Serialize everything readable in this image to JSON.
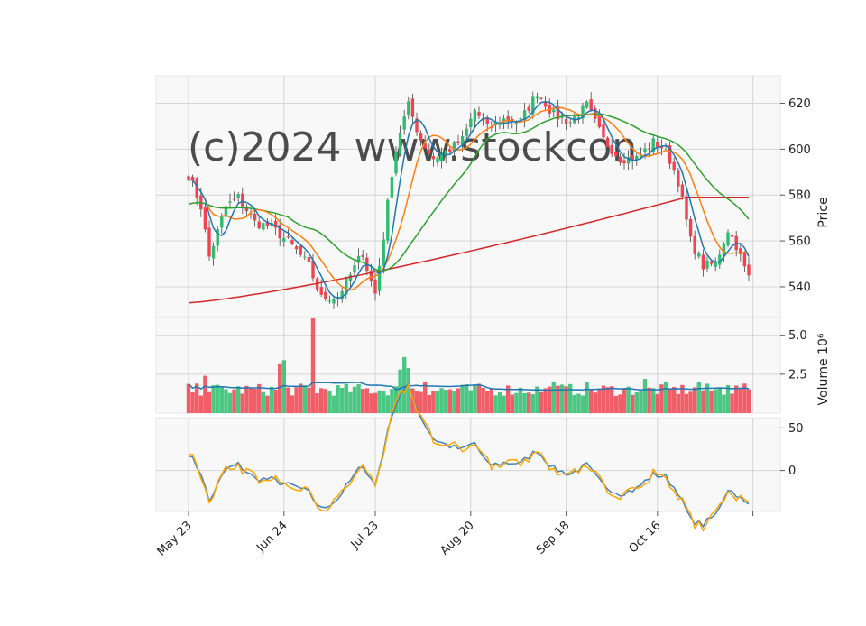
{
  "chart_data": {
    "type": "candlestick",
    "watermark": "(c)2024 www.stockcon",
    "x_tick_labels": [
      "May 23",
      "Jun 24",
      "Jul 23",
      "Aug 20",
      "Sep 18",
      "Oct 16"
    ],
    "x_tick_dates": [
      "2024-05-23",
      "2024-06-24",
      "2024-07-23",
      "2024-08-20",
      "2024-09-18",
      "2024-10-16"
    ],
    "x_range": [
      "2024-05-23",
      "2024-11-06"
    ],
    "grid": true,
    "colors": {
      "up": "#2ebd6f",
      "down": "#f0434f",
      "ma_short": "#1f77b4",
      "ma_mid": "#ff7f0e",
      "ma_long": "#2ca02c",
      "ma_longest": "#d62728",
      "osc_a": "#4682b4",
      "osc_b": "#ffa500"
    },
    "price_panel": {
      "ylabel": "Price",
      "ylim": [
        527,
        632
      ],
      "yticks": [
        540,
        560,
        580,
        600,
        620
      ],
      "anchors": [
        [
          0,
          589
        ],
        [
          3,
          575
        ],
        [
          5,
          553
        ],
        [
          9,
          575
        ],
        [
          12,
          579
        ],
        [
          16,
          568
        ],
        [
          20,
          566
        ],
        [
          25,
          558
        ],
        [
          29,
          549
        ],
        [
          32,
          535
        ],
        [
          36,
          536
        ],
        [
          39,
          545
        ],
        [
          42,
          555
        ],
        [
          43,
          548
        ],
        [
          45,
          537
        ],
        [
          47,
          562
        ],
        [
          49,
          590
        ],
        [
          51,
          608
        ],
        [
          53,
          619
        ],
        [
          56,
          604
        ],
        [
          59,
          596
        ],
        [
          63,
          600
        ],
        [
          66,
          604
        ],
        [
          69,
          617
        ],
        [
          72,
          609
        ],
        [
          76,
          613
        ],
        [
          80,
          612
        ],
        [
          84,
          625
        ],
        [
          88,
          615
        ],
        [
          92,
          612
        ],
        [
          96,
          619
        ],
        [
          100,
          604
        ],
        [
          104,
          596
        ],
        [
          108,
          596
        ],
        [
          112,
          603
        ],
        [
          115,
          600
        ],
        [
          118,
          586
        ],
        [
          121,
          560
        ],
        [
          124,
          549
        ],
        [
          127,
          550
        ],
        [
          130,
          565
        ],
        [
          132,
          558
        ],
        [
          134,
          548
        ],
        [
          135,
          544
        ]
      ]
    },
    "volume_panel": {
      "ylabel": "Volume  10^6",
      "ylim": [
        0,
        6.2
      ],
      "yticks": [
        2.5,
        5.0
      ],
      "ytick_labels": [
        "2.5",
        "5.0"
      ],
      "spikes": [
        [
          4,
          2.4
        ],
        [
          22,
          3.2
        ],
        [
          23,
          3.4
        ],
        [
          30,
          6.1
        ],
        [
          51,
          2.8
        ],
        [
          52,
          3.6
        ],
        [
          53,
          2.9
        ],
        [
          57,
          2.0
        ],
        [
          88,
          2.0
        ],
        [
          96,
          2.0
        ],
        [
          110,
          2.2
        ],
        [
          115,
          2.0
        ],
        [
          123,
          2.0
        ],
        [
          130,
          1.8
        ],
        [
          133,
          1.6
        ]
      ]
    },
    "oscillator_panel": {
      "ylim": [
        -48,
        62
      ],
      "yticks": [
        0,
        50
      ],
      "ytick_labels": [
        "0",
        "50"
      ]
    }
  }
}
